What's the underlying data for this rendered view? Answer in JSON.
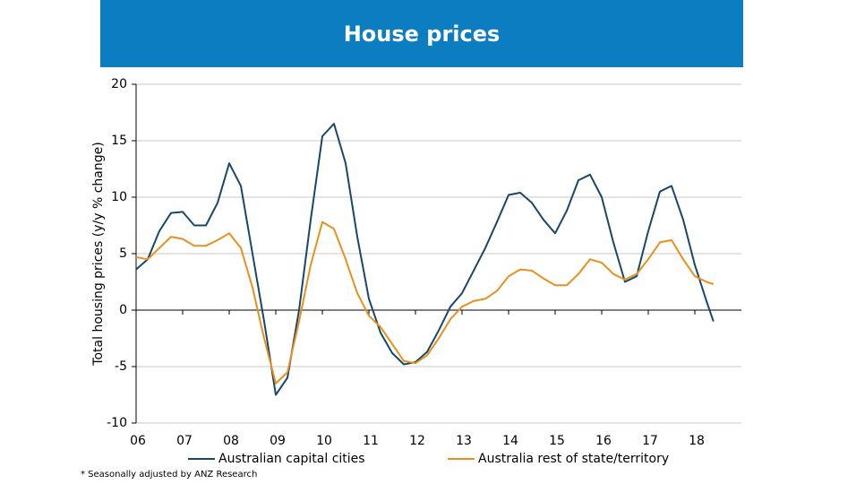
{
  "chart_data": {
    "type": "line",
    "title": "House prices",
    "ylabel": "Total housing prices (y/y % change)",
    "footnote": "* Seasonally adjusted by ANZ Research",
    "x": [
      2006,
      2006.25,
      2006.5,
      2006.75,
      2007,
      2007.25,
      2007.5,
      2007.75,
      2008,
      2008.25,
      2008.5,
      2008.75,
      2009,
      2009.25,
      2009.5,
      2009.75,
      2010,
      2010.25,
      2010.5,
      2010.75,
      2011,
      2011.25,
      2011.5,
      2011.75,
      2012,
      2012.25,
      2012.5,
      2012.75,
      2013,
      2013.25,
      2013.5,
      2013.75,
      2014,
      2014.25,
      2014.5,
      2014.75,
      2015,
      2015.25,
      2015.5,
      2015.75,
      2016,
      2016.25,
      2016.5,
      2016.75,
      2017,
      2017.25,
      2017.5,
      2017.75,
      2018,
      2018.25,
      2018.4
    ],
    "series": [
      {
        "name": "Australian capital cities",
        "color": "#17476b",
        "values": [
          3.6,
          4.5,
          7.0,
          8.6,
          8.7,
          7.5,
          7.5,
          9.5,
          13.0,
          11.0,
          5.0,
          -1.0,
          -7.5,
          -6.0,
          0.0,
          8.0,
          15.4,
          16.5,
          13.0,
          6.5,
          1.0,
          -2.0,
          -3.8,
          -4.8,
          -4.6,
          -3.7,
          -1.8,
          0.3,
          1.5,
          3.5,
          5.5,
          7.8,
          10.2,
          10.4,
          9.5,
          8.0,
          6.8,
          8.8,
          11.5,
          12.0,
          10.0,
          6.0,
          2.5,
          3.0,
          7.0,
          10.5,
          11.0,
          8.0,
          4.0,
          0.8,
          -1.0
        ]
      },
      {
        "name": "Australia rest of state/territory",
        "color": "#e8901c",
        "values": [
          4.7,
          4.5,
          5.5,
          6.5,
          6.3,
          5.7,
          5.7,
          6.2,
          6.8,
          5.5,
          2.0,
          -2.5,
          -6.5,
          -5.5,
          -1.0,
          4.0,
          7.8,
          7.2,
          4.5,
          1.5,
          -0.5,
          -1.5,
          -3.0,
          -4.5,
          -4.7,
          -4.0,
          -2.5,
          -0.8,
          0.3,
          0.8,
          1.0,
          1.7,
          3.0,
          3.6,
          3.5,
          2.8,
          2.2,
          2.2,
          3.2,
          4.5,
          4.2,
          3.2,
          2.7,
          3.2,
          4.5,
          6.0,
          6.2,
          4.5,
          3.0,
          2.5,
          2.3
        ]
      }
    ],
    "xlim": [
      2006,
      2019
    ],
    "xticks": [
      {
        "value": 2006,
        "label": "06"
      },
      {
        "value": 2007,
        "label": "07"
      },
      {
        "value": 2008,
        "label": "08"
      },
      {
        "value": 2009,
        "label": "09"
      },
      {
        "value": 2010,
        "label": "10"
      },
      {
        "value": 2011,
        "label": "11"
      },
      {
        "value": 2012,
        "label": "12"
      },
      {
        "value": 2013,
        "label": "13"
      },
      {
        "value": 2014,
        "label": "14"
      },
      {
        "value": 2015,
        "label": "15"
      },
      {
        "value": 2016,
        "label": "16"
      },
      {
        "value": 2017,
        "label": "17"
      },
      {
        "value": 2018,
        "label": "18"
      }
    ],
    "ylim": [
      -10,
      20
    ],
    "yticks": [
      -10,
      -5,
      0,
      5,
      10,
      15,
      20
    ],
    "grid": true,
    "legend": "bottom"
  }
}
